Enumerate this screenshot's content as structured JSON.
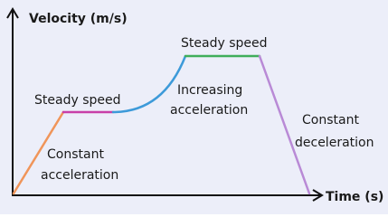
{
  "axes": {
    "y_label": "Velocity (m/s)",
    "x_label": "Time (s)"
  },
  "labels": [
    {
      "lines": [
        "Steady speed"
      ]
    },
    {
      "lines": [
        "Constant",
        "acceleration"
      ]
    },
    {
      "lines": [
        "Steady speed"
      ]
    },
    {
      "lines": [
        "Increasing",
        "acceleration"
      ]
    },
    {
      "lines": [
        "Constant",
        "deceleration"
      ]
    }
  ]
}
